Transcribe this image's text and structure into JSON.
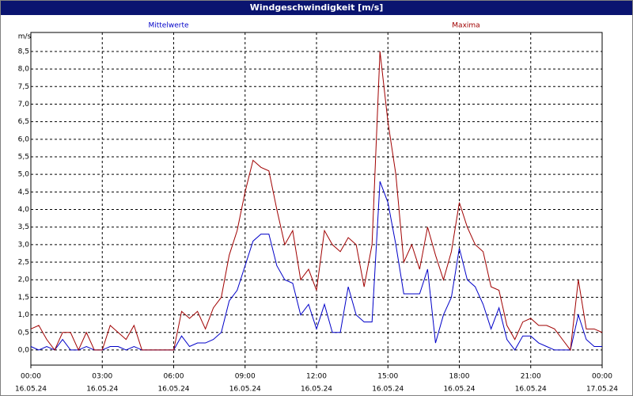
{
  "chart_data": {
    "type": "line",
    "title": "Windgeschwindigkeit [m/s]",
    "y_label": "m/s",
    "x": [
      0,
      20,
      40,
      60,
      80,
      100,
      120,
      140,
      160,
      180,
      200,
      220,
      240,
      260,
      280,
      300,
      320,
      340,
      360,
      380,
      400,
      420,
      440,
      460,
      480,
      500,
      520,
      540,
      560,
      580,
      600,
      620,
      640,
      660,
      680,
      700,
      720,
      740,
      760,
      780,
      800,
      820,
      840,
      860,
      880,
      900,
      920,
      940,
      960,
      980,
      1000,
      1020,
      1040,
      1060,
      1080,
      1100,
      1120,
      1140,
      1160,
      1180,
      1200,
      1220,
      1240,
      1260,
      1280,
      1300,
      1320,
      1340,
      1360,
      1380,
      1400,
      1420,
      1440
    ],
    "series": [
      {
        "name": "Mittelwerte",
        "color": "#0000c8",
        "values": [
          0.1,
          0.0,
          0.1,
          0.0,
          0.3,
          0.0,
          0.0,
          0.1,
          0.0,
          0.0,
          0.1,
          0.1,
          0.0,
          0.1,
          0.0,
          0.0,
          0.0,
          0.0,
          0.0,
          0.4,
          0.1,
          0.2,
          0.2,
          0.3,
          0.5,
          1.4,
          1.7,
          2.4,
          3.1,
          3.3,
          3.3,
          2.4,
          2.0,
          1.9,
          1.0,
          1.3,
          0.6,
          1.3,
          0.5,
          0.5,
          1.8,
          1.0,
          0.8,
          0.8,
          4.8,
          4.2,
          3.0,
          1.6,
          1.6,
          1.6,
          2.3,
          0.2,
          1.0,
          1.5,
          2.9,
          2.0,
          1.8,
          1.3,
          0.6,
          1.2,
          0.3,
          0.0,
          0.4,
          0.4,
          0.2,
          0.1,
          0.0,
          0.0,
          0.0,
          1.0,
          0.3,
          0.1,
          0.1
        ]
      },
      {
        "name": "Maxima",
        "color": "#a00000",
        "values": [
          0.6,
          0.7,
          0.3,
          0.0,
          0.5,
          0.5,
          0.0,
          0.5,
          0.0,
          0.0,
          0.7,
          0.5,
          0.3,
          0.7,
          0.0,
          0.0,
          0.0,
          0.0,
          0.0,
          1.1,
          0.9,
          1.1,
          0.6,
          1.2,
          1.5,
          2.7,
          3.4,
          4.5,
          5.4,
          5.2,
          5.1,
          4.0,
          3.0,
          3.4,
          2.0,
          2.3,
          1.7,
          3.4,
          3.0,
          2.8,
          3.2,
          3.0,
          1.8,
          3.0,
          8.5,
          6.5,
          5.0,
          2.5,
          3.0,
          2.3,
          3.5,
          2.7,
          2.0,
          2.8,
          4.2,
          3.5,
          3.0,
          2.8,
          1.8,
          1.7,
          0.7,
          0.3,
          0.8,
          0.9,
          0.7,
          0.7,
          0.6,
          0.3,
          0.0,
          2.0,
          0.6,
          0.6,
          0.5
        ]
      }
    ],
    "xlim": [
      0,
      1440
    ],
    "xticks": [
      {
        "value": 0,
        "label": "00:00"
      },
      {
        "value": 180,
        "label": "03:00"
      },
      {
        "value": 360,
        "label": "06:00"
      },
      {
        "value": 540,
        "label": "09:00"
      },
      {
        "value": 720,
        "label": "12:00"
      },
      {
        "value": 900,
        "label": "15:00"
      },
      {
        "value": 1080,
        "label": "18:00"
      },
      {
        "value": 1260,
        "label": "21:00"
      },
      {
        "value": 1440,
        "label": "00:00"
      }
    ],
    "xtick_dates": [
      "16.05.24",
      "16.05.24",
      "16.05.24",
      "16.05.24",
      "16.05.24",
      "16.05.24",
      "16.05.24",
      "16.05.24",
      "17.05.24"
    ],
    "ylim": [
      -0.43,
      9.04
    ],
    "yticks": [
      {
        "value": 0,
        "label": "0,0"
      },
      {
        "value": 0.5,
        "label": "0,5"
      },
      {
        "value": 1,
        "label": "1,0"
      },
      {
        "value": 1.5,
        "label": "1,5"
      },
      {
        "value": 2,
        "label": "2,0"
      },
      {
        "value": 2.5,
        "label": "2,5"
      },
      {
        "value": 3,
        "label": "3,0"
      },
      {
        "value": 3.5,
        "label": "3,5"
      },
      {
        "value": 4,
        "label": "4,0"
      },
      {
        "value": 4.5,
        "label": "4,5"
      },
      {
        "value": 5,
        "label": "5,0"
      },
      {
        "value": 5.5,
        "label": "5,5"
      },
      {
        "value": 6,
        "label": "6,0"
      },
      {
        "value": 6.5,
        "label": "6,5"
      },
      {
        "value": 7,
        "label": "7,0"
      },
      {
        "value": 7.5,
        "label": "7,5"
      },
      {
        "value": 8,
        "label": "8,0"
      },
      {
        "value": 8.5,
        "label": "8,5"
      }
    ],
    "grid": true
  }
}
